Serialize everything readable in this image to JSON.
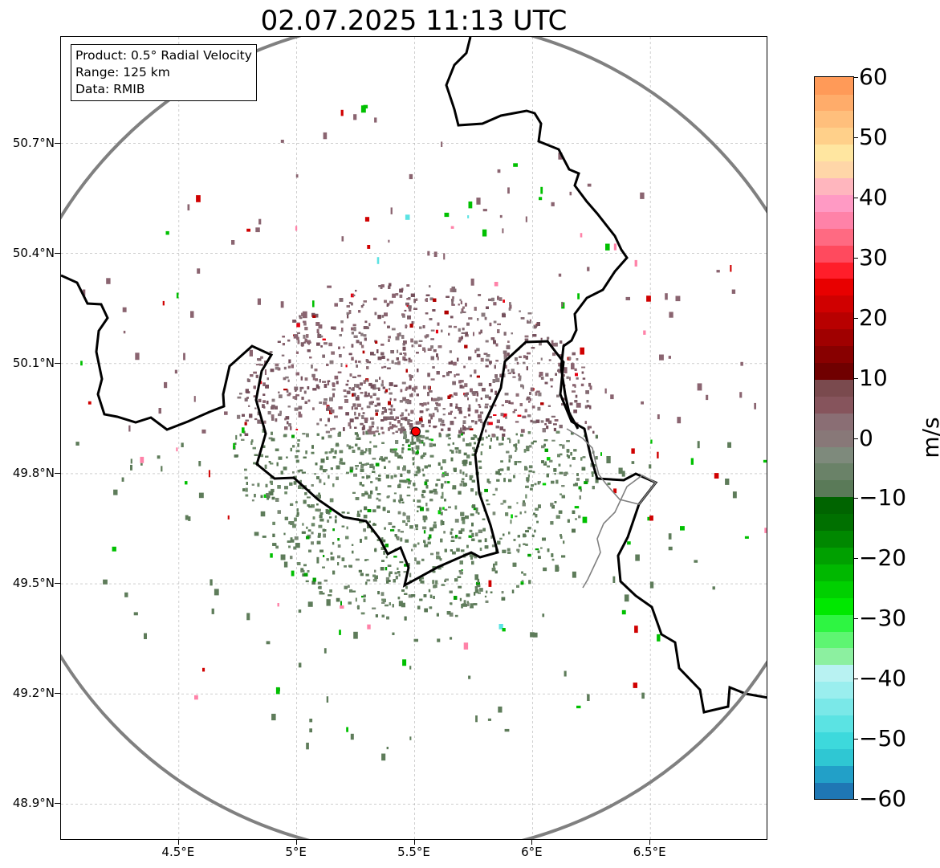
{
  "title": "02.07.2025 11:13 UTC",
  "info": {
    "product": "Product: 0.5° Radial Velocity",
    "range": "Range: 125 km",
    "data": "Data: RMIB"
  },
  "lat_labels": [
    "50.7°N",
    "50.4°N",
    "50.1°N",
    "49.8°N",
    "49.5°N",
    "49.2°N",
    "48.9°N"
  ],
  "lon_labels": [
    "4.5°E",
    "5°E",
    "5.5°E",
    "6°E",
    "6.5°E"
  ],
  "lat_values": [
    50.7,
    50.4,
    50.1,
    49.8,
    49.5,
    49.2,
    48.9
  ],
  "lon_values": [
    4.5,
    5.0,
    5.5,
    6.0,
    6.5
  ],
  "extent": {
    "lon_min": 4.0,
    "lon_max": 7.0,
    "lat_min": 48.8,
    "lat_max": 50.99
  },
  "radar_site": {
    "lon": 5.505,
    "lat": 49.915
  },
  "colorbar": {
    "unit": "m/s",
    "min": -60,
    "max": 60,
    "ticks": [
      "60",
      "50",
      "40",
      "30",
      "20",
      "10",
      "0",
      "−10",
      "−20",
      "−30",
      "−40",
      "−50",
      "−60"
    ],
    "tick_values": [
      60,
      50,
      40,
      30,
      20,
      10,
      0,
      -10,
      -20,
      -30,
      -40,
      -50,
      -60
    ],
    "colors": [
      "#1f77b4",
      "#22a0c8",
      "#2fc7d3",
      "#3dd9dc",
      "#5be3e3",
      "#7ae8e8",
      "#9aeeee",
      "#b8f2f2",
      "#8cf0a0",
      "#5ef572",
      "#2ef542",
      "#00e800",
      "#00d000",
      "#00b800",
      "#00a000",
      "#008800",
      "#007000",
      "#006400",
      "#5a7a58",
      "#6a8268",
      "#7e8a7c",
      "#887878",
      "#8a6e74",
      "#86545c",
      "#7a4a4e",
      "#700000",
      "#880000",
      "#a00000",
      "#b80000",
      "#d00000",
      "#e80000",
      "#ff1e2a",
      "#ff4a5e",
      "#ff6a82",
      "#ff82a8",
      "#ff9ac4",
      "#ffb6be",
      "#ffd6a8",
      "#ffe6a0",
      "#ffd08a",
      "#ffbf7c",
      "#ffac6a",
      "#ff9a58"
    ]
  }
}
